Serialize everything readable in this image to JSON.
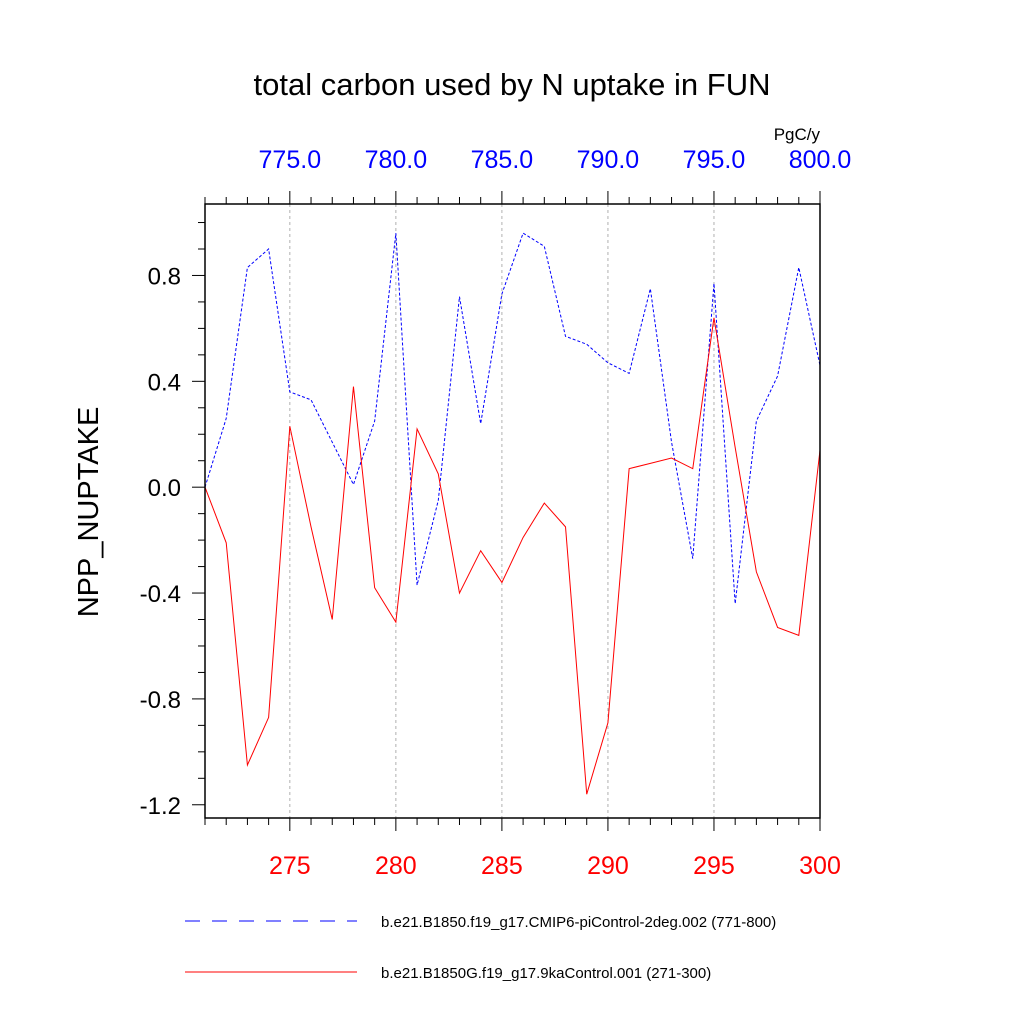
{
  "chart_data": {
    "type": "line",
    "title": "total carbon used by N uptake in FUN",
    "ylabel": "NPP_NUPTAKE",
    "top_axis_unit": "PgC/y",
    "ylim": [
      -1.25,
      1.07
    ],
    "yticks": [
      "0.8",
      "0.4",
      "0.0",
      "-0.4",
      "-0.8",
      "-1.2"
    ],
    "ytick_values": [
      0.8,
      0.4,
      0.0,
      -0.4,
      -0.8,
      -1.2
    ],
    "bottom_axis": {
      "range": [
        271,
        300
      ],
      "ticks": [
        275,
        280,
        285,
        290,
        295,
        300
      ],
      "tick_labels": [
        "275",
        "280",
        "285",
        "290",
        "295",
        "300"
      ],
      "color": "#ff0000"
    },
    "top_axis": {
      "range": [
        771,
        800
      ],
      "ticks": [
        775,
        780,
        785,
        790,
        795,
        800
      ],
      "tick_labels": [
        "775.0",
        "780.0",
        "785.0",
        "790.0",
        "795.0",
        "800.0"
      ],
      "color": "#0000ff"
    },
    "grid": "vertical dashed at major x ticks",
    "legend_placement": "bottom",
    "series": [
      {
        "name": "b.e21.B1850.f19_g17.CMIP6-piControl-2deg.002 (771-800)",
        "axis": "top",
        "color": "#0000ff",
        "style": "dashed",
        "x": [
          771,
          772,
          773,
          774,
          775,
          776,
          777,
          778,
          779,
          780,
          781,
          782,
          783,
          784,
          785,
          786,
          787,
          788,
          789,
          790,
          791,
          792,
          793,
          794,
          795,
          796,
          797,
          798,
          799,
          800
        ],
        "values": [
          0.0,
          0.26,
          0.83,
          0.9,
          0.36,
          0.33,
          0.17,
          0.01,
          0.25,
          0.96,
          -0.37,
          -0.05,
          0.72,
          0.24,
          0.73,
          0.96,
          0.91,
          0.57,
          0.54,
          0.47,
          0.43,
          0.75,
          0.17,
          -0.27,
          0.77,
          -0.44,
          0.25,
          0.42,
          0.83,
          0.46
        ]
      },
      {
        "name": "b.e21.B1850G.f19_g17.9kaControl.001 (271-300)",
        "axis": "bottom",
        "color": "#ff0000",
        "style": "solid",
        "x": [
          271,
          272,
          273,
          274,
          275,
          276,
          277,
          278,
          279,
          280,
          281,
          282,
          283,
          284,
          285,
          286,
          287,
          288,
          289,
          290,
          291,
          292,
          293,
          294,
          295,
          296,
          297,
          298,
          299,
          300
        ],
        "values": [
          0.0,
          -0.21,
          -1.05,
          -0.87,
          0.23,
          -0.15,
          -0.5,
          0.38,
          -0.38,
          -0.51,
          0.22,
          0.05,
          -0.4,
          -0.24,
          -0.36,
          -0.19,
          -0.06,
          -0.15,
          -1.16,
          -0.89,
          0.07,
          0.09,
          0.11,
          0.07,
          0.64,
          0.15,
          -0.32,
          -0.53,
          -0.56,
          0.14
        ]
      }
    ]
  }
}
